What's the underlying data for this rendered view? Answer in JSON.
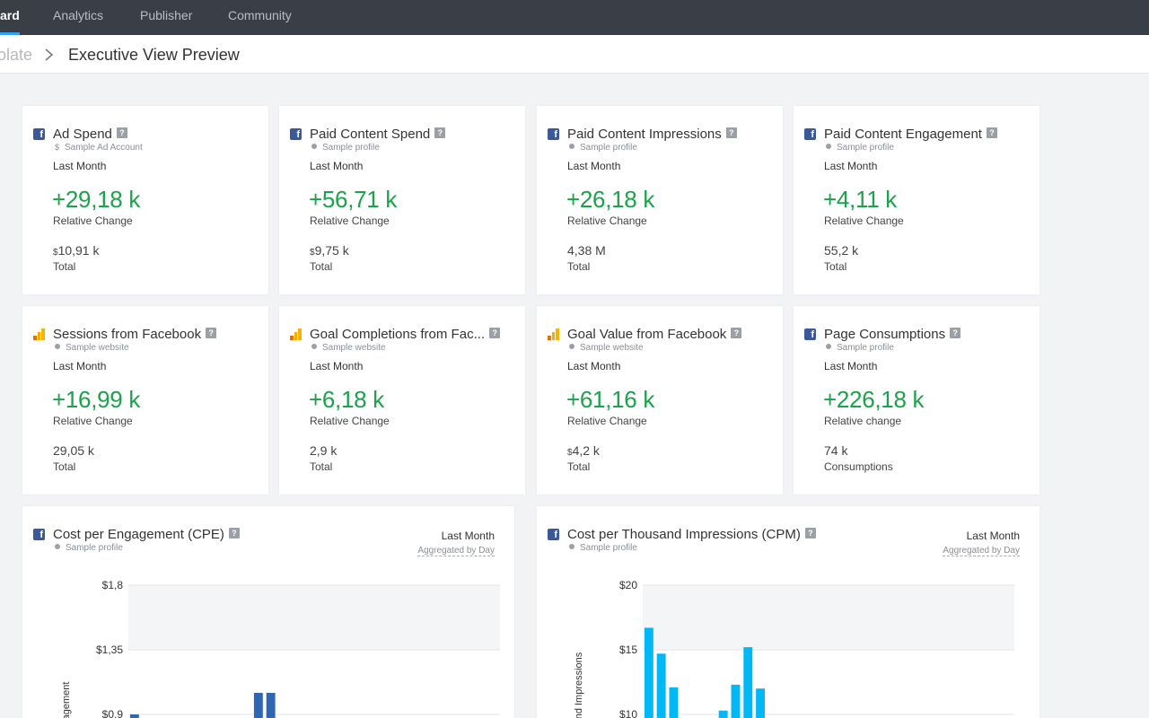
{
  "nav": {
    "items": [
      {
        "label": "ard",
        "active": true
      },
      {
        "label": "Analytics",
        "active": false
      },
      {
        "label": "Publisher",
        "active": false
      },
      {
        "label": "Community",
        "active": false
      }
    ]
  },
  "breadcrumb": {
    "previous": "olate",
    "current": "Executive View Preview"
  },
  "colors": {
    "positive": "#1aa34a",
    "facebook": "#3b5998",
    "bar": "#00b8f5",
    "accent": "#2ea3f2"
  },
  "help_glyph": "?",
  "fb_glyph": "f",
  "cards": [
    {
      "title": "Ad Spend",
      "source": "facebook",
      "sub": "Sample Ad Account",
      "sub_kind": "dollar",
      "sub_glyph": "$",
      "period": "Last Month",
      "value": "+29,18 k",
      "value_label": "Relative Change",
      "total_cur": "$",
      "total": "10,91 k",
      "total_label": "Total"
    },
    {
      "title": "Paid Content Spend",
      "source": "facebook",
      "sub": "Sample profile",
      "sub_kind": "dot",
      "period": "Last Month",
      "value": "+56,71 k",
      "value_label": "Relative Change",
      "total_cur": "$",
      "total": "9,75 k",
      "total_label": "Total"
    },
    {
      "title": "Paid Content Impressions",
      "source": "facebook",
      "sub": "Sample profile",
      "sub_kind": "dot",
      "period": "Last Month",
      "value": "+26,18 k",
      "value_label": "Relative Change",
      "total_cur": "",
      "total": "4,38 M",
      "total_label": "Total"
    },
    {
      "title": "Paid Content Engagement",
      "source": "facebook",
      "sub": "Sample profile",
      "sub_kind": "dot",
      "period": "Last Month",
      "value": "+4,11 k",
      "value_label": "Relative Change",
      "total_cur": "",
      "total": "55,2 k",
      "total_label": "Total"
    },
    {
      "title": "Sessions from Facebook",
      "source": "analytics",
      "sub": "Sample website",
      "sub_kind": "dot",
      "period": "Last Month",
      "value": "+16,99 k",
      "value_label": "Relative Change",
      "total_cur": "",
      "total": "29,05 k",
      "total_label": "Total"
    },
    {
      "title": "Goal Completions from Fac...",
      "source": "analytics",
      "sub": "Sample website",
      "sub_kind": "dot",
      "period": "Last Month",
      "value": "+6,18 k",
      "value_label": "Relative Change",
      "total_cur": "",
      "total": "2,9 k",
      "total_label": "Total"
    },
    {
      "title": "Goal Value from Facebook",
      "source": "analytics",
      "sub": "Sample website",
      "sub_kind": "dot",
      "period": "Last Month",
      "value": "+61,16 k",
      "value_label": "Relative Change",
      "total_cur": "$",
      "total": "4,2 k",
      "total_label": "Total"
    },
    {
      "title": "Page Consumptions",
      "source": "facebook",
      "sub": "Sample profile",
      "sub_kind": "dot",
      "period": "Last Month",
      "value": "+226,18 k",
      "value_label": "Relative change",
      "total_cur": "",
      "total": "74 k",
      "total_label": "Consumptions"
    }
  ],
  "chart_data": [
    {
      "type": "bar",
      "title": "Cost per Engagement (CPE)",
      "sub": "Sample profile",
      "period": "Last Month",
      "aggregation": "Aggregated by Day",
      "ylabel": "gagement",
      "yticks": [
        "$1,8",
        "$1,35",
        "$0,9"
      ],
      "ytick_values": [
        1.8,
        1.35,
        0.9
      ],
      "ylim": [
        0,
        1.8
      ],
      "grid": true,
      "values": [
        0.9,
        null,
        null,
        null,
        null,
        null,
        null,
        null,
        null,
        null,
        1.05,
        1.05,
        null,
        null,
        null,
        null,
        null,
        null,
        null,
        null,
        null,
        null,
        null,
        null,
        null,
        null,
        null,
        null,
        null,
        null
      ],
      "bar_color": "#2f66b3"
    },
    {
      "type": "bar",
      "title": "Cost per Thousand Impressions (CPM)",
      "sub": "Sample profile",
      "period": "Last Month",
      "aggregation": "Aggregated by Day",
      "ylabel": "nd Impressions",
      "yticks": [
        "$20",
        "$15",
        "$10"
      ],
      "ytick_values": [
        20,
        15,
        10
      ],
      "ylim": [
        0,
        20
      ],
      "grid": true,
      "values": [
        16.7,
        14.7,
        12.1,
        null,
        null,
        null,
        10.3,
        12.3,
        15.2,
        12.0,
        null,
        null,
        null,
        null,
        null,
        null,
        null,
        null,
        null,
        null,
        null,
        null,
        null,
        null,
        null,
        null,
        null,
        null,
        null,
        null
      ],
      "bar_color": "#00b8f5"
    }
  ]
}
